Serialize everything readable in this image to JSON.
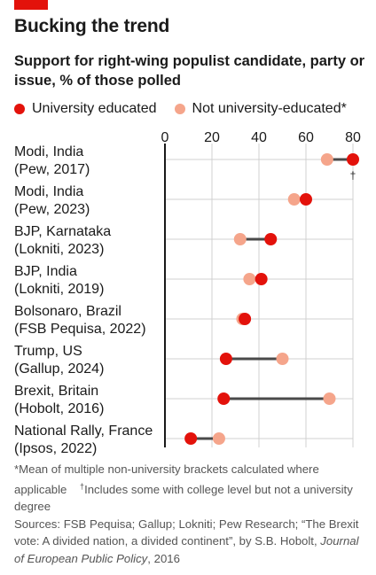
{
  "title": "Bucking the trend",
  "subtitle": "Support for right-wing populist candidate, party or issue, % of those polled",
  "legend": {
    "university": "University educated",
    "not_university": "Not university-educated*"
  },
  "colors": {
    "accent": "#e3120b",
    "university": "#e3120b",
    "not_university": "#f5a58b",
    "connector": "#4a4a4a",
    "grid": "#d0d0d0",
    "axis": "#1a1a1a"
  },
  "notes": {
    "footnote_mean": "*Mean of multiple non-university brackets calculated where applicable",
    "footnote_dagger_mark": "†",
    "footnote_dagger": "Includes some with college level but not a university degree",
    "sources_prefix": "Sources: FSB Pequisa; Gallup; Lokniti; Pew Research; “The Brexit vote: A divided nation, a divided continent”, by S.B. Hobolt,",
    "sources_journal": "Journal of European Public Policy",
    "sources_suffix": ", 2016"
  },
  "chart_data": {
    "type": "dot-plot",
    "xlim": [
      0,
      80
    ],
    "ticks": [
      "0",
      "20",
      "40",
      "60",
      "80"
    ],
    "tick_values": [
      0,
      20,
      40,
      60,
      80
    ],
    "grid": true,
    "legend_position": "top",
    "rows": [
      {
        "line1": "Modi, India",
        "line2": "(Pew, 2017)",
        "university": 80,
        "not_university": 69,
        "mark": "†"
      },
      {
        "line1": "Modi, India",
        "line2": "(Pew, 2023)",
        "university": 60,
        "not_university": 55,
        "mark": ""
      },
      {
        "line1": "BJP, Karnataka",
        "line2": "(Lokniti, 2023)",
        "university": 45,
        "not_university": 32,
        "mark": ""
      },
      {
        "line1": "BJP, India",
        "line2": "(Lokniti, 2019)",
        "university": 41,
        "not_university": 36,
        "mark": ""
      },
      {
        "line1": "Bolsonaro, Brazil",
        "line2": "(FSB Pequisa, 2022)",
        "university": 34,
        "not_university": 33,
        "mark": ""
      },
      {
        "line1": "Trump, US",
        "line2": "(Gallup, 2024)",
        "university": 26,
        "not_university": 50,
        "mark": ""
      },
      {
        "line1": "Brexit, Britain",
        "line2": "(Hobolt, 2016)",
        "university": 25,
        "not_university": 70,
        "mark": ""
      },
      {
        "line1": "National Rally, France",
        "line2": "(Ipsos, 2022)",
        "university": 11,
        "not_university": 23,
        "mark": ""
      }
    ]
  }
}
